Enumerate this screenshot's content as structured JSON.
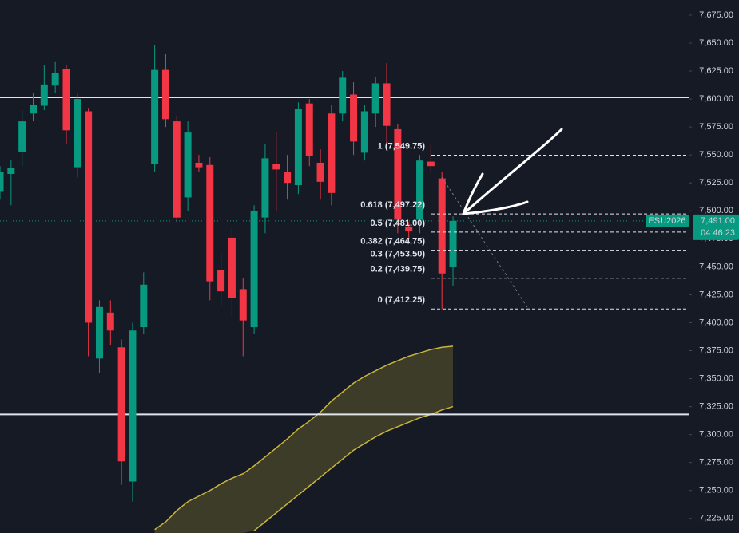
{
  "chart_data": {
    "type": "candlestick",
    "up_color": "#089981",
    "down_color": "#f23645",
    "open": [
      7517,
      7533,
      7553,
      7587,
      7594,
      7612,
      7627,
      7539,
      7589,
      7368,
      7409,
      7378,
      7258,
      7396,
      7542,
      7626,
      7580,
      7512,
      7543,
      7541,
      7447,
      7476,
      7430,
      7396,
      7494,
      7542,
      7535,
      7523,
      7596,
      7543,
      7587,
      7587,
      7604,
      7552,
      7587,
      7614,
      7573,
      7486,
      7492,
      7544,
      7529,
      7450
    ],
    "high": [
      7540,
      7545,
      7590,
      7605,
      7630,
      7633,
      7630,
      7605,
      7592,
      7420,
      7420,
      7385,
      7400,
      7445,
      7648,
      7640,
      7585,
      7580,
      7550,
      7548,
      7462,
      7485,
      7440,
      7505,
      7560,
      7570,
      7550,
      7597,
      7600,
      7555,
      7595,
      7625,
      7615,
      7595,
      7620,
      7632,
      7578,
      7490,
      7550,
      7560,
      7535,
      7495
    ],
    "low": [
      7510,
      7505,
      7540,
      7580,
      7590,
      7605,
      7560,
      7530,
      7370,
      7355,
      7380,
      7255,
      7240,
      7390,
      7535,
      7575,
      7490,
      7500,
      7535,
      7420,
      7415,
      7405,
      7370,
      7390,
      7480,
      7500,
      7510,
      7515,
      7540,
      7510,
      7505,
      7580,
      7550,
      7545,
      7575,
      7560,
      7480,
      7475,
      7480,
      7535,
      7412,
      7433
    ],
    "close": [
      7535,
      7538,
      7580,
      7595,
      7613,
      7623,
      7572,
      7600,
      7400,
      7414,
      7393,
      7276,
      7393,
      7434,
      7626,
      7582,
      7494,
      7570,
      7539,
      7437,
      7428,
      7422,
      7402,
      7500,
      7547,
      7537,
      7525,
      7591,
      7549,
      7526,
      7516,
      7619,
      7562,
      7589,
      7614,
      7576,
      7492,
      7482,
      7545,
      7540,
      7444,
      7491
    ],
    "band_upper": [
      null,
      null,
      null,
      null,
      null,
      null,
      null,
      null,
      null,
      null,
      null,
      null,
      null,
      null,
      7215,
      7222,
      7232,
      7240,
      7245,
      7250,
      7256,
      7261,
      7265,
      7272,
      7280,
      7288,
      7296,
      7305,
      7312,
      7320,
      7330,
      7338,
      7346,
      7352,
      7357,
      7362,
      7366,
      7370,
      7373,
      7376,
      7378,
      7379
    ],
    "band_lower": [
      null,
      null,
      null,
      null,
      null,
      null,
      null,
      null,
      null,
      null,
      null,
      null,
      null,
      null,
      null,
      null,
      null,
      null,
      null,
      null,
      null,
      null,
      null,
      7214,
      7222,
      7230,
      7238,
      7246,
      7254,
      7262,
      7270,
      7278,
      7286,
      7292,
      7298,
      7303,
      7307,
      7311,
      7315,
      7318,
      7322,
      7325
    ],
    "band_color": "#c9b53a",
    "horizontal_lines": [
      7601.5,
      7318
    ],
    "fib_levels": [
      {
        "value": 7549.75,
        "label": "1 (7,549.75)"
      },
      {
        "value": 7497.22,
        "label": "0.618 (7,497.22)"
      },
      {
        "value": 7481.0,
        "label": "0.5 (7,481.00)"
      },
      {
        "value": 7464.75,
        "label": "0.382 (7,464.75)"
      },
      {
        "value": 7453.5,
        "label": "0.3 (7,453.50)"
      },
      {
        "value": 7439.75,
        "label": "0.2 (7,439.75)"
      },
      {
        "value": 7412.25,
        "label": "0 (7,412.25)"
      }
    ],
    "last_price": {
      "value": 7491,
      "label": "7,491.00"
    },
    "symbol": "ESU2026",
    "countdown": "04:46:23",
    "ylim": [
      7212,
      7688.5
    ],
    "yticks": [
      {
        "value": 7225,
        "label": "7,225.00"
      },
      {
        "value": 7250,
        "label": "7,250.00"
      },
      {
        "value": 7275,
        "label": "7,275.00"
      },
      {
        "value": 7300,
        "label": "7,300.00"
      },
      {
        "value": 7325,
        "label": "7,325.00"
      },
      {
        "value": 7350,
        "label": "7,350.00"
      },
      {
        "value": 7375,
        "label": "7,375.00"
      },
      {
        "value": 7400,
        "label": "7,400.00"
      },
      {
        "value": 7425,
        "label": "7,425.00"
      },
      {
        "value": 7450,
        "label": "7,450.00"
      },
      {
        "value": 7475,
        "label": "7,475.00"
      },
      {
        "value": 7500,
        "label": "7,500.00"
      },
      {
        "value": 7525,
        "label": "7,525.00"
      },
      {
        "value": 7550,
        "label": "7,550.00"
      },
      {
        "value": 7575,
        "label": "7,575.00"
      },
      {
        "value": 7600,
        "label": "7,600.00"
      },
      {
        "value": 7625,
        "label": "7,625.00"
      },
      {
        "value": 7650,
        "label": "7,650.00"
      },
      {
        "value": 7675,
        "label": "7,675.00"
      }
    ]
  }
}
